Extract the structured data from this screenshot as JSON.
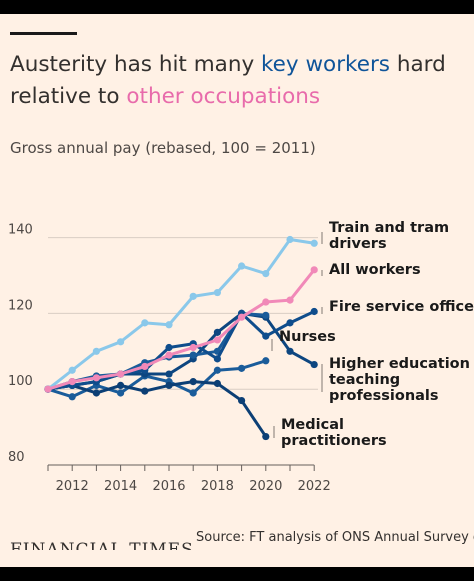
{
  "header": {
    "title_part1": "Austerity has hit many ",
    "title_keyword1": "key workers",
    "title_part2": " hard relative to ",
    "title_keyword2": "other occupations",
    "subtitle": "Gross annual pay (rebased, 100 = 2011)"
  },
  "footer": {
    "logo_text": "FINANCIAL TIMES",
    "source": "Source: FT analysis of ONS Annual Survey of"
  },
  "colors": {
    "background": "#fff1e5",
    "frame": "#000000",
    "train": "#8ac8ea",
    "all_workers": "#f189b8",
    "fire": "#0f4d8c",
    "nurses": "#1a5c9a",
    "higher_ed": "#0d4680",
    "medical": "#0c3f75",
    "grid": "#d9cec4",
    "axis_text": "#4d4845"
  },
  "chart_data": {
    "type": "line",
    "x": [
      2011,
      2012,
      2013,
      2014,
      2015,
      2016,
      2017,
      2018,
      2019,
      2020,
      2021,
      2022
    ],
    "xticks": [
      "2012",
      "2014",
      "2016",
      "2018",
      "2020",
      "2022"
    ],
    "yticks": [
      "80",
      "100",
      "120",
      "140"
    ],
    "ylim": [
      80,
      140
    ],
    "grid": true,
    "series": [
      {
        "name": "Train and tram drivers",
        "values": [
          100,
          105,
          110,
          112.5,
          117.5,
          117,
          124.5,
          125.5,
          132.5,
          130.5,
          139.5,
          138.5
        ]
      },
      {
        "name": "All workers",
        "values": [
          100,
          102,
          103,
          104,
          106,
          109,
          111,
          113,
          119,
          123,
          123.5,
          131.5
        ]
      },
      {
        "name": "Fire service officers",
        "values": [
          100,
          101,
          102,
          104,
          105,
          111,
          112,
          108,
          120,
          114,
          117.5,
          120.5
        ]
      },
      {
        "name": "Nurses",
        "values": [
          100,
          102,
          103.5,
          104,
          107,
          108.5,
          109,
          110,
          120,
          119.5,
          null,
          null
        ]
      },
      {
        "name": "Higher education teaching professionals",
        "values": [
          100,
          101,
          102,
          104,
          104,
          104,
          108,
          115,
          120,
          119,
          110,
          106.5
        ]
      },
      {
        "name": "Medical practitioners",
        "values": [
          100,
          101,
          99,
          101,
          99.5,
          101,
          102,
          101.5,
          97,
          87.5,
          null,
          null
        ]
      },
      {
        "name": "",
        "values": [
          100,
          98,
          101,
          99,
          103.5,
          102,
          99,
          105,
          105.5,
          107.5,
          null,
          null
        ]
      }
    ],
    "labels": [
      {
        "series": 0,
        "lines": [
          "Train and tram",
          "drivers"
        ]
      },
      {
        "series": 1,
        "lines": [
          "All workers"
        ]
      },
      {
        "series": 2,
        "lines": [
          "Fire service officers"
        ]
      },
      {
        "series": 3,
        "lines": [
          "Nurses"
        ]
      },
      {
        "series": 4,
        "lines": [
          "Higher education",
          "teaching",
          "professionals"
        ]
      },
      {
        "series": 5,
        "lines": [
          "Medical",
          "practitioners"
        ]
      }
    ]
  }
}
